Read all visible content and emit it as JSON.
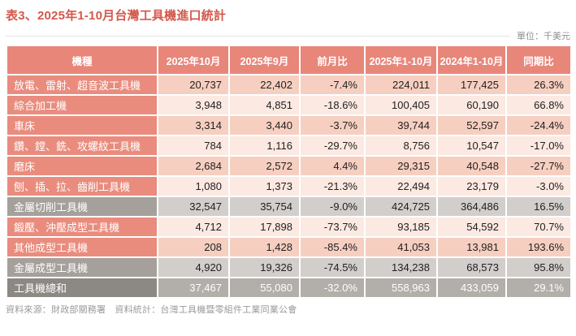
{
  "title": "表3、2025年1-10月台灣工具機進口統計",
  "unit_label": "單位：千美元",
  "table": {
    "columns": [
      "機種",
      "2025年10月",
      "2025年9月",
      "前月比",
      "2025年1-10月",
      "2024年1-10月",
      "同期比"
    ],
    "rows": [
      {
        "label": "放電、雷射、超音波工具機",
        "values": [
          "20,737",
          "22,402",
          "-7.4%",
          "224,011",
          "177,425",
          "26.3%"
        ],
        "variant": "dark"
      },
      {
        "label": "綜合加工機",
        "values": [
          "3,948",
          "4,851",
          "-18.6%",
          "100,405",
          "60,190",
          "66.8%"
        ],
        "variant": "light"
      },
      {
        "label": "車床",
        "values": [
          "3,314",
          "3,440",
          "-3.7%",
          "39,744",
          "52,597",
          "-24.4%"
        ],
        "variant": "dark"
      },
      {
        "label": "鑽、鏜、銑、攻螺紋工具機",
        "values": [
          "784",
          "1,116",
          "-29.7%",
          "8,756",
          "10,547",
          "-17.0%"
        ],
        "variant": "light"
      },
      {
        "label": "磨床",
        "values": [
          "2,684",
          "2,572",
          "4.4%",
          "29,315",
          "40,548",
          "-27.7%"
        ],
        "variant": "dark"
      },
      {
        "label": "刨、插、拉、齒削工具機",
        "values": [
          "1,080",
          "1,373",
          "-21.3%",
          "22,494",
          "23,179",
          "-3.0%"
        ],
        "variant": "light"
      },
      {
        "label": "金屬切削工具機",
        "values": [
          "32,547",
          "35,754",
          "-9.0%",
          "424,725",
          "364,486",
          "16.5%"
        ],
        "variant": "subtotal"
      },
      {
        "label": "鍛壓、沖壓成型工具機",
        "values": [
          "4,712",
          "17,898",
          "-73.7%",
          "93,185",
          "54,592",
          "70.7%"
        ],
        "variant": "light"
      },
      {
        "label": "其他成型工具機",
        "values": [
          "208",
          "1,428",
          "-85.4%",
          "41,053",
          "13,981",
          "193.6%"
        ],
        "variant": "dark"
      },
      {
        "label": "金屬成型工具機",
        "values": [
          "4,920",
          "19,326",
          "-74.5%",
          "134,238",
          "68,573",
          "95.8%"
        ],
        "variant": "subtotal"
      },
      {
        "label": "工具機總和",
        "values": [
          "37,467",
          "55,080",
          "-32.0%",
          "558,963",
          "433,059",
          "29.1%"
        ],
        "variant": "total"
      }
    ]
  },
  "footer": "資料來源：財政部關務署　資料統計：台灣工具機暨零組件工業同業公會",
  "colors": {
    "title": "#d4584b",
    "header_bg": "#e8867a",
    "row_label_bg": "#e98c7e",
    "row_dark_bg": "#f6cfc1",
    "row_light_bg": "#fbe9e2",
    "subtotal_label_bg": "#a5a09b",
    "subtotal_bg": "#d2cecb",
    "total_label_bg": "#8c8883",
    "total_bg": "#b2aeaa"
  },
  "chart_data": {
    "type": "table",
    "title": "表3、2025年1-10月台灣工具機進口統計",
    "unit": "千美元",
    "columns": [
      "機種",
      "2025年10月",
      "2025年9月",
      "前月比",
      "2025年1-10月",
      "2024年1-10月",
      "同期比"
    ],
    "rows": [
      {
        "category": "放電、雷射、超音波工具機",
        "oct_2025": 20737,
        "sep_2025": 22402,
        "mom_pct": -7.4,
        "jan_oct_2025": 224011,
        "jan_oct_2024": 177425,
        "yoy_pct": 26.3
      },
      {
        "category": "綜合加工機",
        "oct_2025": 3948,
        "sep_2025": 4851,
        "mom_pct": -18.6,
        "jan_oct_2025": 100405,
        "jan_oct_2024": 60190,
        "yoy_pct": 66.8
      },
      {
        "category": "車床",
        "oct_2025": 3314,
        "sep_2025": 3440,
        "mom_pct": -3.7,
        "jan_oct_2025": 39744,
        "jan_oct_2024": 52597,
        "yoy_pct": -24.4
      },
      {
        "category": "鑽、鏜、銑、攻螺紋工具機",
        "oct_2025": 784,
        "sep_2025": 1116,
        "mom_pct": -29.7,
        "jan_oct_2025": 8756,
        "jan_oct_2024": 10547,
        "yoy_pct": -17.0
      },
      {
        "category": "磨床",
        "oct_2025": 2684,
        "sep_2025": 2572,
        "mom_pct": 4.4,
        "jan_oct_2025": 29315,
        "jan_oct_2024": 40548,
        "yoy_pct": -27.7
      },
      {
        "category": "刨、插、拉、齒削工具機",
        "oct_2025": 1080,
        "sep_2025": 1373,
        "mom_pct": -21.3,
        "jan_oct_2025": 22494,
        "jan_oct_2024": 23179,
        "yoy_pct": -3.0
      },
      {
        "category": "金屬切削工具機",
        "oct_2025": 32547,
        "sep_2025": 35754,
        "mom_pct": -9.0,
        "jan_oct_2025": 424725,
        "jan_oct_2024": 364486,
        "yoy_pct": 16.5
      },
      {
        "category": "鍛壓、沖壓成型工具機",
        "oct_2025": 4712,
        "sep_2025": 17898,
        "mom_pct": -73.7,
        "jan_oct_2025": 93185,
        "jan_oct_2024": 54592,
        "yoy_pct": 70.7
      },
      {
        "category": "其他成型工具機",
        "oct_2025": 208,
        "sep_2025": 1428,
        "mom_pct": -85.4,
        "jan_oct_2025": 41053,
        "jan_oct_2024": 13981,
        "yoy_pct": 193.6
      },
      {
        "category": "金屬成型工具機",
        "oct_2025": 4920,
        "sep_2025": 19326,
        "mom_pct": -74.5,
        "jan_oct_2025": 134238,
        "jan_oct_2024": 68573,
        "yoy_pct": 95.8
      },
      {
        "category": "工具機總和",
        "oct_2025": 37467,
        "sep_2025": 55080,
        "mom_pct": -32.0,
        "jan_oct_2025": 558963,
        "jan_oct_2024": 433059,
        "yoy_pct": 29.1
      }
    ]
  }
}
